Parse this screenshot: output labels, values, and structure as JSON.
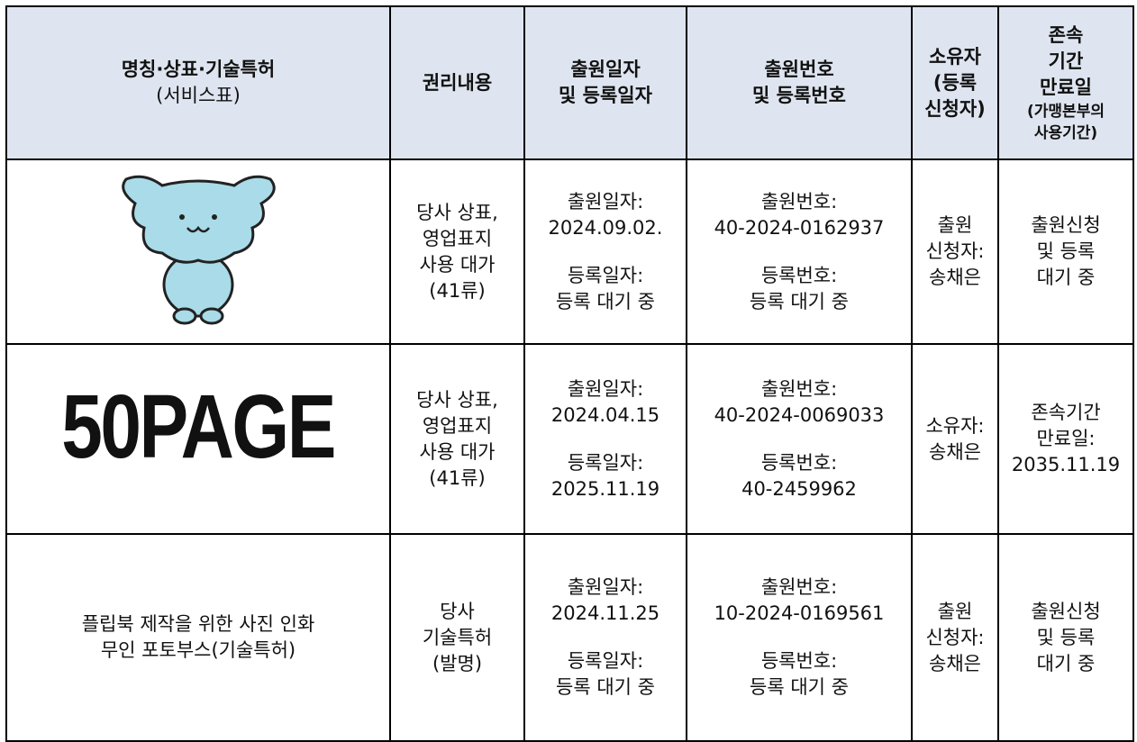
{
  "table": {
    "header": [
      {
        "title": "명칭·상표·기술특허",
        "sub": "(서비스표)"
      },
      {
        "lines": [
          "권리내용"
        ]
      },
      {
        "lines": [
          "출원일자",
          "및 등록일자"
        ]
      },
      {
        "lines": [
          "출원번호",
          "및 등록번호"
        ]
      },
      {
        "lines": [
          "소유자",
          "(등록",
          "신청자)"
        ]
      },
      {
        "lines": [
          "존속",
          "기간",
          "만료일"
        ],
        "small": [
          "(가맹본부의",
          "사용기간)"
        ]
      }
    ],
    "rows": [
      {
        "rights": [
          "당사 상표,",
          "영업표지",
          "사용 대가",
          "(41류)"
        ],
        "dates": [
          [
            "출원일자:",
            "2024.09.02."
          ],
          [
            "등록일자:",
            "등록 대기 중"
          ]
        ],
        "numbers": [
          [
            "출원번호:",
            "40-2024-0162937"
          ],
          [
            "등록번호:",
            "등록 대기 중"
          ]
        ],
        "owner": [
          "출원",
          "신청자:",
          "송채은"
        ],
        "term": [
          "출원신청",
          "및 등록",
          "대기 중"
        ]
      },
      {
        "logo": "50PAGE",
        "rights": [
          "당사 상표,",
          "영업표지",
          "사용 대가",
          "(41류)"
        ],
        "dates": [
          [
            "출원일자:",
            "2024.04.15"
          ],
          [
            "등록일자:",
            "2025.11.19"
          ]
        ],
        "numbers": [
          [
            "출원번호:",
            "40-2024-0069033"
          ],
          [
            "등록번호:",
            "40-2459962"
          ]
        ],
        "owner": [
          "소유자:",
          "송채은"
        ],
        "term": [
          "존속기간",
          "만료일:",
          "2035.11.19"
        ]
      },
      {
        "name": [
          "플립북 제작을 위한 사진 인화",
          "무인 포토부스(기술특허)"
        ],
        "rights": [
          "당사",
          "기술특허",
          "(발명)"
        ],
        "dates": [
          [
            "출원일자:",
            "2024.11.25"
          ],
          [
            "등록일자:",
            "등록 대기 중"
          ]
        ],
        "numbers": [
          [
            "출원번호:",
            "10-2024-0169561"
          ],
          [
            "등록번호:",
            "등록 대기 중"
          ]
        ],
        "owner": [
          "출원",
          "신청자:",
          "송채은"
        ],
        "term": [
          "출원신청",
          "및 등록",
          "대기 중"
        ]
      }
    ]
  }
}
